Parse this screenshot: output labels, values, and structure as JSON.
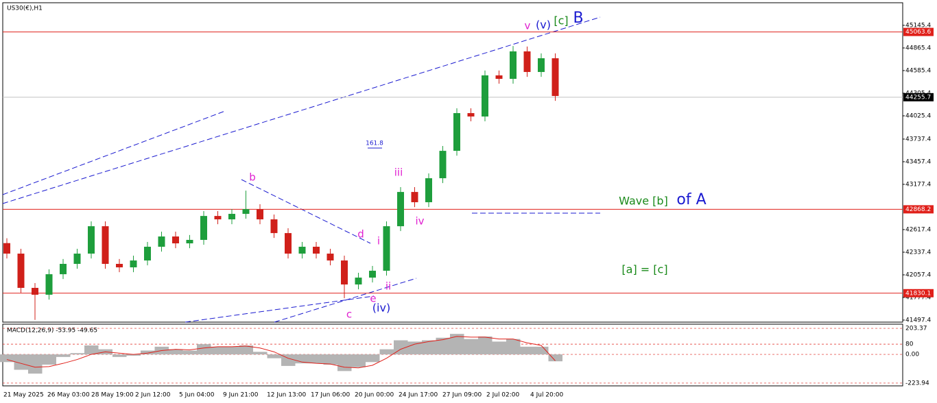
{
  "symbol": "US30(€),H1",
  "chart_data": [
    {
      "type": "candlestick",
      "x_labels": [
        "21 May 2025",
        "26 May 03:00",
        "28 May 19:00",
        "2 Jun 12:00",
        "5 Jun 04:00",
        "9 Jun 21:00",
        "12 Jun 13:00",
        "17 Jun 06:00",
        "20 Jun 00:00",
        "24 Jun 17:00",
        "27 Jun 09:00",
        "2 Jul 02:00",
        "4 Jul 20:00"
      ],
      "open": [
        42450,
        42320,
        41896,
        41811,
        42065,
        42193,
        42320,
        42659,
        42193,
        42150,
        42235,
        42405,
        42532,
        42447,
        42490,
        42786,
        42744,
        42812,
        42871,
        42744,
        42574,
        42320,
        42405,
        42320,
        42235,
        41938,
        42023,
        42108,
        42659,
        43083,
        42956,
        43253,
        43592,
        44059,
        44017,
        44526,
        44483,
        44823,
        44568,
        44738
      ],
      "high": [
        42510,
        42380,
        41956,
        42125,
        42253,
        42380,
        42719,
        42719,
        42253,
        42295,
        42465,
        42592,
        42592,
        42550,
        42846,
        42846,
        42872,
        43100,
        42931,
        42804,
        42634,
        42465,
        42465,
        42380,
        42295,
        42083,
        42168,
        42719,
        43143,
        43143,
        43313,
        43652,
        44119,
        44119,
        44586,
        44586,
        44890,
        44883,
        44798,
        44798
      ],
      "low": [
        42260,
        41836,
        41500,
        41751,
        42005,
        42133,
        42260,
        42133,
        42090,
        42090,
        42175,
        42345,
        42387,
        42387,
        42430,
        42684,
        42684,
        42752,
        42684,
        42514,
        42260,
        42260,
        42260,
        42175,
        41768,
        41878,
        41963,
        42048,
        42599,
        42896,
        42896,
        43193,
        43532,
        43957,
        43957,
        44423,
        44423,
        44508,
        44508,
        44211
      ],
      "close": [
        42320,
        41896,
        41811,
        42065,
        42193,
        42320,
        42659,
        42193,
        42150,
        42235,
        42405,
        42532,
        42447,
        42490,
        42786,
        42744,
        42812,
        42871,
        42744,
        42574,
        42320,
        42405,
        42320,
        42235,
        41938,
        42023,
        42108,
        42659,
        43083,
        42956,
        43253,
        43592,
        44059,
        44017,
        44526,
        44483,
        44823,
        44568,
        44738,
        44271
      ],
      "bull_color": "#1e9e3c",
      "bear_color": "#d0201a",
      "ylim": [
        41472,
        45425
      ],
      "yticks": [
        45145.4,
        44865.4,
        44585.4,
        44305.4,
        44025.4,
        43737.4,
        43457.4,
        43177.4,
        42617.4,
        42337.4,
        42057.4,
        41777.4,
        41497.4
      ],
      "levels": [
        {
          "value": 45063.6,
          "color": "#e0201a"
        },
        {
          "value": 42868.2,
          "color": "#e0201a"
        },
        {
          "value": 41830.1,
          "color": "#e0201a"
        }
      ],
      "current_price": 44255.7,
      "annotations": [
        {
          "text": "b",
          "color": "#e020d0"
        },
        {
          "text": "d",
          "color": "#e020d0"
        },
        {
          "text": "i",
          "color": "#e020d0"
        },
        {
          "text": "iii",
          "color": "#e020d0"
        },
        {
          "text": "iv",
          "color": "#e020d0"
        },
        {
          "text": "ii",
          "color": "#e020d0"
        },
        {
          "text": "e",
          "color": "#e020d0"
        },
        {
          "text": "c",
          "color": "#e020d0"
        },
        {
          "text": "(iv)",
          "color": "#1a1ad0"
        },
        {
          "text": "v",
          "color": "#e020d0"
        },
        {
          "text": "(v)",
          "color": "#1a1ad0"
        },
        {
          "text": "[c]",
          "color": "#1a8a1a"
        },
        {
          "text": "B",
          "color": "#1a1ad0"
        },
        {
          "text": "161.8",
          "color": "#1a1ad0"
        },
        {
          "text": "Wave [b]",
          "color": "#1a8a1a"
        },
        {
          "text": "of A",
          "color": "#1a1ad0"
        },
        {
          "text": "[a] = [c]",
          "color": "#1a8a1a"
        }
      ]
    },
    {
      "type": "macd",
      "title": "MACD(12,26,9) -53.95 -49.65",
      "values": [
        -60,
        -120,
        -150,
        -80,
        -20,
        10,
        70,
        40,
        -20,
        -10,
        30,
        60,
        40,
        30,
        80,
        60,
        60,
        70,
        20,
        -30,
        -90,
        -70,
        -70,
        -80,
        -130,
        -100,
        -60,
        40,
        110,
        100,
        110,
        130,
        160,
        120,
        140,
        100,
        120,
        60,
        60,
        -53.95
      ],
      "signal": [
        -40,
        -70,
        -100,
        -95,
        -70,
        -40,
        0,
        20,
        10,
        0,
        10,
        30,
        40,
        35,
        50,
        60,
        60,
        65,
        50,
        20,
        -30,
        -60,
        -70,
        -75,
        -100,
        -105,
        -85,
        -30,
        40,
        80,
        100,
        115,
        140,
        135,
        135,
        120,
        120,
        90,
        70,
        -49.65
      ],
      "hist_color": "#b4b4b4",
      "signal_color": "#e0201a",
      "ylim": [
        -245.6,
        235.8
      ],
      "yticks": [
        203.37,
        80,
        {
          "value": 0,
          "label": "0.00"
        },
        -223.94
      ]
    }
  ]
}
